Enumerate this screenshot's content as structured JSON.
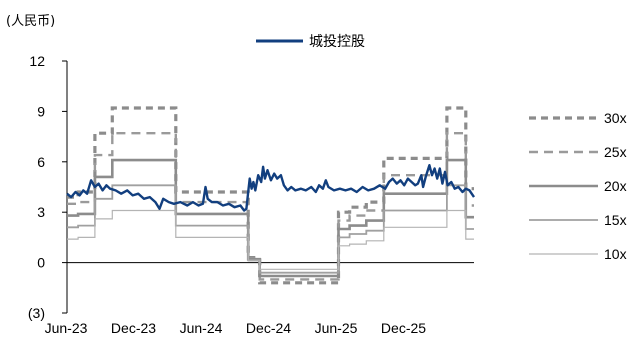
{
  "chart_data": {
    "type": "line",
    "unit_label": "(人民币)",
    "y_ticks": [
      {
        "value": 12,
        "label": "12"
      },
      {
        "value": 9,
        "label": "9"
      },
      {
        "value": 6,
        "label": "6"
      },
      {
        "value": 3,
        "label": "3"
      },
      {
        "value": 0,
        "label": "0"
      },
      {
        "value": -3,
        "label": "(3)"
      }
    ],
    "ylim": [
      -3,
      12
    ],
    "x_ticks": [
      "Jun-23",
      "Dec-23",
      "Jun-24",
      "Dec-24",
      "Jun-25",
      "Dec-25"
    ],
    "xlim": [
      "2023-06-01",
      "2026-06-01"
    ],
    "price_series": {
      "name": "城投控股",
      "color": "#123f7f",
      "points": [
        [
          "2023-06-01",
          4.1
        ],
        [
          "2023-06-12",
          3.9
        ],
        [
          "2023-06-24",
          4.2
        ],
        [
          "2023-07-05",
          4.0
        ],
        [
          "2023-07-15",
          4.3
        ],
        [
          "2023-07-25",
          4.1
        ],
        [
          "2023-08-05",
          4.9
        ],
        [
          "2023-08-15",
          4.5
        ],
        [
          "2023-08-25",
          4.7
        ],
        [
          "2023-09-05",
          4.3
        ],
        [
          "2023-09-15",
          4.6
        ],
        [
          "2023-09-25",
          4.4
        ],
        [
          "2023-10-10",
          4.3
        ],
        [
          "2023-10-25",
          4.1
        ],
        [
          "2023-11-10",
          4.3
        ],
        [
          "2023-11-25",
          4.0
        ],
        [
          "2023-12-10",
          4.1
        ],
        [
          "2023-12-25",
          3.8
        ],
        [
          "2024-01-10",
          3.9
        ],
        [
          "2024-01-25",
          3.6
        ],
        [
          "2024-02-05",
          3.2
        ],
        [
          "2024-02-15",
          3.8
        ],
        [
          "2024-03-01",
          3.6
        ],
        [
          "2024-03-15",
          3.5
        ],
        [
          "2024-04-01",
          3.6
        ],
        [
          "2024-04-20",
          3.4
        ],
        [
          "2024-05-05",
          3.6
        ],
        [
          "2024-05-20",
          3.4
        ],
        [
          "2024-06-01",
          3.5
        ],
        [
          "2024-06-08",
          4.5
        ],
        [
          "2024-06-14",
          3.8
        ],
        [
          "2024-06-25",
          3.6
        ],
        [
          "2024-07-10",
          3.6
        ],
        [
          "2024-07-25",
          3.4
        ],
        [
          "2024-08-10",
          3.5
        ],
        [
          "2024-08-25",
          3.3
        ],
        [
          "2024-09-10",
          3.4
        ],
        [
          "2024-09-20",
          3.1
        ],
        [
          "2024-09-26",
          3.2
        ],
        [
          "2024-10-01",
          4.2
        ],
        [
          "2024-10-05",
          5.0
        ],
        [
          "2024-10-10",
          4.4
        ],
        [
          "2024-10-15",
          4.8
        ],
        [
          "2024-10-20",
          4.3
        ],
        [
          "2024-10-28",
          5.2
        ],
        [
          "2024-11-05",
          4.8
        ],
        [
          "2024-11-10",
          5.7
        ],
        [
          "2024-11-15",
          5.0
        ],
        [
          "2024-11-22",
          5.5
        ],
        [
          "2024-12-01",
          4.9
        ],
        [
          "2024-12-10",
          5.3
        ],
        [
          "2024-12-18",
          5.0
        ],
        [
          "2024-12-28",
          5.2
        ],
        [
          "2025-01-05",
          4.6
        ],
        [
          "2025-01-15",
          4.3
        ],
        [
          "2025-01-25",
          4.5
        ],
        [
          "2025-02-05",
          4.3
        ],
        [
          "2025-02-20",
          4.4
        ],
        [
          "2025-03-05",
          4.3
        ],
        [
          "2025-03-20",
          4.5
        ],
        [
          "2025-04-01",
          4.2
        ],
        [
          "2025-04-10",
          4.6
        ],
        [
          "2025-04-20",
          4.4
        ],
        [
          "2025-04-28",
          4.9
        ],
        [
          "2025-05-05",
          4.5
        ],
        [
          "2025-05-20",
          4.3
        ],
        [
          "2025-06-05",
          4.4
        ],
        [
          "2025-06-20",
          4.3
        ],
        [
          "2025-07-05",
          4.4
        ],
        [
          "2025-07-20",
          4.2
        ],
        [
          "2025-08-05",
          4.5
        ],
        [
          "2025-08-20",
          4.3
        ],
        [
          "2025-09-05",
          4.4
        ],
        [
          "2025-09-20",
          4.6
        ],
        [
          "2025-10-05",
          4.4
        ],
        [
          "2025-10-15",
          4.8
        ],
        [
          "2025-10-25",
          5.0
        ],
        [
          "2025-11-05",
          4.7
        ],
        [
          "2025-11-15",
          4.9
        ],
        [
          "2025-11-25",
          4.6
        ],
        [
          "2025-12-05",
          5.0
        ],
        [
          "2025-12-15",
          4.8
        ],
        [
          "2025-12-25",
          4.6
        ],
        [
          "2026-01-01",
          4.7
        ],
        [
          "2026-01-10",
          5.2
        ],
        [
          "2026-01-15",
          4.5
        ],
        [
          "2026-01-22",
          5.1
        ],
        [
          "2026-02-01",
          5.8
        ],
        [
          "2026-02-08",
          5.2
        ],
        [
          "2026-02-15",
          5.6
        ],
        [
          "2026-02-22",
          5.0
        ],
        [
          "2026-03-01",
          5.6
        ],
        [
          "2026-03-08",
          4.7
        ],
        [
          "2026-03-15",
          5.4
        ],
        [
          "2026-03-22",
          4.6
        ],
        [
          "2026-04-01",
          4.8
        ],
        [
          "2026-04-10",
          4.4
        ],
        [
          "2026-04-20",
          4.5
        ],
        [
          "2026-05-01",
          4.2
        ],
        [
          "2026-05-10",
          4.4
        ],
        [
          "2026-05-20",
          4.3
        ],
        [
          "2026-06-01",
          3.9
        ]
      ]
    },
    "band_breaks": [
      "2023-06-01",
      "2023-07-01",
      "2023-08-15",
      "2023-10-01",
      "2024-03-20",
      "2024-10-01",
      "2024-11-01",
      "2025-04-25",
      "2025-06-01",
      "2025-07-01",
      "2025-08-15",
      "2025-10-01",
      "2026-03-20",
      "2026-05-10",
      "2026-06-01"
    ],
    "bands": [
      {
        "name": "30x",
        "color": "#8c8c8c",
        "dash": "7,5",
        "width": 3.2,
        "values": [
          3.9,
          4.2,
          7.7,
          9.2,
          4.2,
          0.3,
          -1.2,
          -1.2,
          3.0,
          3.3,
          3.6,
          6.2,
          9.2,
          4.4
        ]
      },
      {
        "name": "25x",
        "color": "#9a9a9a",
        "dash": "9,6",
        "width": 2.4,
        "values": [
          3.5,
          3.6,
          6.4,
          7.7,
          3.6,
          0.25,
          -1.0,
          -1.0,
          2.5,
          2.8,
          3.1,
          5.2,
          7.7,
          3.4
        ]
      },
      {
        "name": "20x",
        "color": "#8c8c8c",
        "dash": "",
        "width": 2.6,
        "values": [
          2.8,
          2.9,
          5.1,
          6.1,
          2.9,
          0.2,
          -0.8,
          -0.8,
          2.0,
          2.2,
          2.5,
          4.1,
          6.1,
          2.7
        ]
      },
      {
        "name": "15x",
        "color": "#a0a0a0",
        "dash": "",
        "width": 1.8,
        "values": [
          2.1,
          2.2,
          3.8,
          4.6,
          2.2,
          0.15,
          -0.6,
          -0.6,
          1.5,
          1.7,
          1.9,
          3.1,
          4.6,
          2.0
        ]
      },
      {
        "name": "10x",
        "color": "#b4b4b4",
        "dash": "",
        "width": 1.2,
        "values": [
          1.4,
          1.5,
          2.6,
          3.1,
          1.5,
          0.1,
          -0.4,
          -0.4,
          1.0,
          1.1,
          1.3,
          2.1,
          3.1,
          1.4
        ]
      }
    ]
  }
}
